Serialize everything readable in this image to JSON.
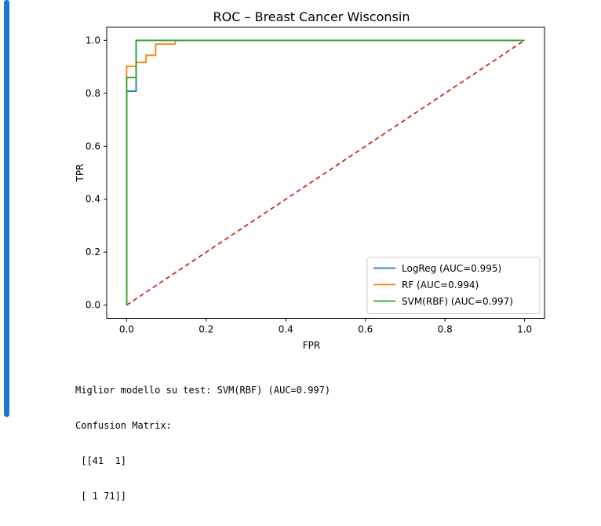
{
  "notebook": {
    "cell_accent": "#1976d2"
  },
  "chart_data": {
    "type": "line",
    "title": "ROC – Breast Cancer Wisconsin",
    "xlabel": "FPR",
    "ylabel": "TPR",
    "xlim": [
      -0.05,
      1.05
    ],
    "ylim": [
      -0.05,
      1.05
    ],
    "xticks": [
      "0.0",
      "0.2",
      "0.4",
      "0.6",
      "0.8",
      "1.0"
    ],
    "yticks": [
      "0.0",
      "0.2",
      "0.4",
      "0.6",
      "0.8",
      "1.0"
    ],
    "grid": false,
    "legend_position": "lower-right",
    "series": [
      {
        "name": "LogReg (AUC=0.995)",
        "color": "#1f77b4",
        "x": [
          0,
          0,
          0.024,
          0.024,
          0.024,
          0.024,
          1.0
        ],
        "y": [
          0,
          0.808,
          0.808,
          0.86,
          0.92,
          1.0,
          1.0
        ]
      },
      {
        "name": "RF (AUC=0.994)",
        "color": "#ff7f0e",
        "x": [
          0,
          0,
          0.024,
          0.024,
          0.049,
          0.049,
          0.073,
          0.073,
          0.122,
          0.122,
          1.0
        ],
        "y": [
          0,
          0.902,
          0.902,
          0.917,
          0.917,
          0.944,
          0.944,
          0.986,
          0.986,
          1.0,
          1.0
        ]
      },
      {
        "name": "SVM(RBF) (AUC=0.997)",
        "color": "#2ca02c",
        "x": [
          0,
          0,
          0.024,
          0.024,
          1.0
        ],
        "y": [
          0,
          0.86,
          0.86,
          1.0,
          1.0
        ]
      }
    ],
    "diagonal": {
      "x": [
        0,
        1
      ],
      "y": [
        0,
        1
      ],
      "color": "#d62728",
      "style": "dashed"
    }
  },
  "stdout": {
    "lines": [
      "Miglior modello su test: SVM(RBF) (AUC=0.997)",
      "Confusion Matrix:",
      " [[41  1]",
      " [ 1 71]]"
    ]
  }
}
